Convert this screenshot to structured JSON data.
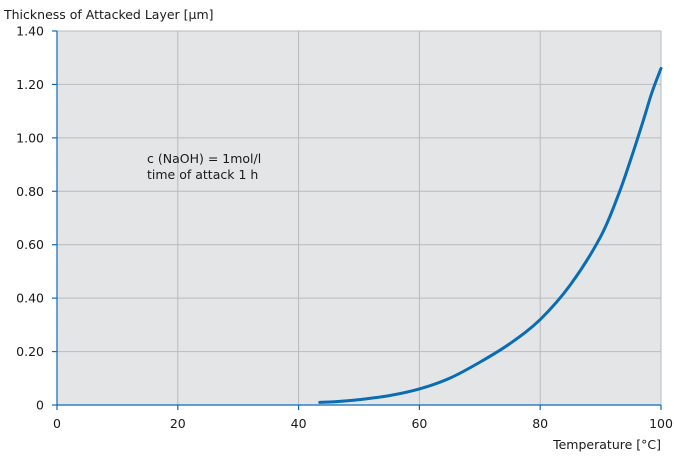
{
  "chart_data": {
    "type": "line",
    "ylabel": "Thickness of Attacked Layer [µm]",
    "xlabel": "Temperature [°C]",
    "xlim": [
      0,
      100
    ],
    "ylim": [
      0,
      1.4
    ],
    "x_ticks": [
      {
        "value": 0,
        "label": "0"
      },
      {
        "value": 20,
        "label": "20"
      },
      {
        "value": 40,
        "label": "40"
      },
      {
        "value": 60,
        "label": "60"
      },
      {
        "value": 80,
        "label": "80"
      },
      {
        "value": 100,
        "label": "100"
      }
    ],
    "y_ticks": [
      {
        "value": 0,
        "label": "0"
      },
      {
        "value": 0.2,
        "label": "0.20"
      },
      {
        "value": 0.4,
        "label": "0.40"
      },
      {
        "value": 0.6,
        "label": "0.60"
      },
      {
        "value": 0.8,
        "label": "0.80"
      },
      {
        "value": 1.0,
        "label": "1.00"
      },
      {
        "value": 1.2,
        "label": "1.20"
      },
      {
        "value": 1.4,
        "label": "1.40"
      }
    ],
    "grid": true,
    "annotations": [
      "c (NaOH) = 1mol/l",
      "time of attack 1 h"
    ],
    "series": [
      {
        "color": "#0a6cb5",
        "points": [
          [
            43.5,
            0.01
          ],
          [
            46,
            0.012
          ],
          [
            50,
            0.02
          ],
          [
            55,
            0.035
          ],
          [
            60,
            0.06
          ],
          [
            65,
            0.1
          ],
          [
            70,
            0.16
          ],
          [
            75,
            0.23
          ],
          [
            80,
            0.32
          ],
          [
            85,
            0.45
          ],
          [
            90,
            0.63
          ],
          [
            93,
            0.79
          ],
          [
            95,
            0.92
          ],
          [
            97,
            1.06
          ],
          [
            98.5,
            1.17
          ],
          [
            100,
            1.26
          ]
        ]
      }
    ],
    "colors": {
      "plot_background": "#e4e5e7",
      "grid": "#b9babc",
      "axis": "#0a6cb5",
      "line": "#0a6cb5"
    }
  }
}
